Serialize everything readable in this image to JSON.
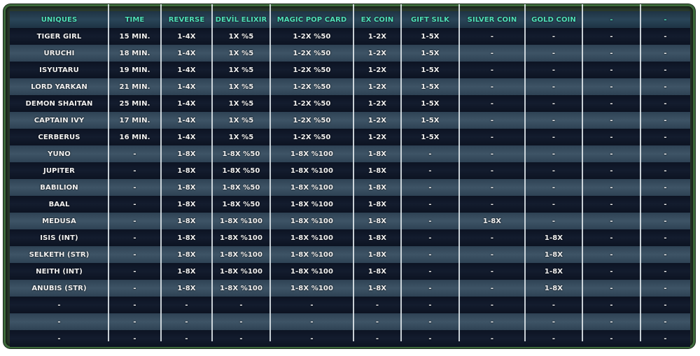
{
  "headers": [
    "UNIQUES",
    "TIME",
    "REVERSE",
    "DEVİL ELIXIR",
    "MAGIC POP CARD",
    "EX COIN",
    "GIFT SILK",
    "SILVER COIN",
    "GOLD COIN",
    "-",
    "-"
  ],
  "rows": [
    [
      "TIGER GIRL",
      "15 MIN.",
      "1-4X",
      "1X %5",
      "1-2X %50",
      "1-2X",
      "1-5X",
      "-",
      "-",
      "-",
      "-"
    ],
    [
      "URUCHI",
      "18 MIN.",
      "1-4X",
      "1X %5",
      "1-2X %50",
      "1-2X",
      "1-5X",
      "-",
      "-",
      "-",
      "-"
    ],
    [
      "ISYUTARU",
      "19 MIN.",
      "1-4X",
      "1X %5",
      "1-2X %50",
      "1-2X",
      "1-5X",
      "-",
      "-",
      "-",
      "-"
    ],
    [
      "LORD YARKAN",
      "21 MIN.",
      "1-4X",
      "1X %5",
      "1-2X %50",
      "1-2X",
      "1-5X",
      "-",
      "-",
      "-",
      "-"
    ],
    [
      "DEMON SHAITAN",
      "25 MIN.",
      "1-4X",
      "1X %5",
      "1-2X %50",
      "1-2X",
      "1-5X",
      "-",
      "-",
      "-",
      "-"
    ],
    [
      "CAPTAIN IVY",
      "17 MIN.",
      "1-4X",
      "1X %5",
      "1-2X %50",
      "1-2X",
      "1-5X",
      "-",
      "-",
      "-",
      "-"
    ],
    [
      "CERBERUS",
      "16 MIN.",
      "1-4X",
      "1X %5",
      "1-2X %50",
      "1-2X",
      "1-5X",
      "-",
      "-",
      "-",
      "-"
    ],
    [
      "YUNO",
      "-",
      "1-8X",
      "1-8X %50",
      "1-8X %100",
      "1-8X",
      "-",
      "-",
      "-",
      "-",
      "-"
    ],
    [
      "JUPITER",
      "-",
      "1-8X",
      "1-8X %50",
      "1-8X %100",
      "1-8X",
      "-",
      "-",
      "-",
      "-",
      "-"
    ],
    [
      "BABILION",
      "-",
      "1-8X",
      "1-8X %50",
      "1-8X %100",
      "1-8X",
      "-",
      "-",
      "-",
      "-",
      "-"
    ],
    [
      "BAAL",
      "-",
      "1-8X",
      "1-8X %50",
      "1-8X %100",
      "1-8X",
      "-",
      "-",
      "-",
      "-",
      "-"
    ],
    [
      "MEDUSA",
      "-",
      "1-8X",
      "1-8X %100",
      "1-8X %100",
      "1-8X",
      "-",
      "1-8X",
      "-",
      "-",
      "-"
    ],
    [
      "ISIS (INT)",
      "-",
      "1-8X",
      "1-8X %100",
      "1-8X %100",
      "1-8X",
      "-",
      "-",
      "1-8X",
      "-",
      "-"
    ],
    [
      "SELKETH (STR)",
      "-",
      "1-8X",
      "1-8X %100",
      "1-8X %100",
      "1-8X",
      "-",
      "-",
      "1-8X",
      "-",
      "-"
    ],
    [
      "NEITH (INT)",
      "-",
      "1-8X",
      "1-8X %100",
      "1-8X %100",
      "1-8X",
      "-",
      "-",
      "1-8X",
      "-",
      "-"
    ],
    [
      "ANUBIS (STR)",
      "-",
      "1-8X",
      "1-8X %100",
      "1-8X %100",
      "1-8X",
      "-",
      "-",
      "1-8X",
      "-",
      "-"
    ],
    [
      "-",
      "-",
      "-",
      "-",
      "-",
      "-",
      "-",
      "-",
      "-",
      "-",
      "-"
    ],
    [
      "-",
      "-",
      "-",
      "-",
      "-",
      "-",
      "-",
      "-",
      "-",
      "-",
      "-"
    ],
    [
      "-",
      "-",
      "-",
      "-",
      "-",
      "-",
      "-",
      "-",
      "-",
      "-",
      "-"
    ]
  ],
  "colors": {
    "header_text": "#4fe0b8",
    "frame": "#3d6a3a",
    "row_dark": "#131c2e",
    "row_light": "#3e5466"
  }
}
